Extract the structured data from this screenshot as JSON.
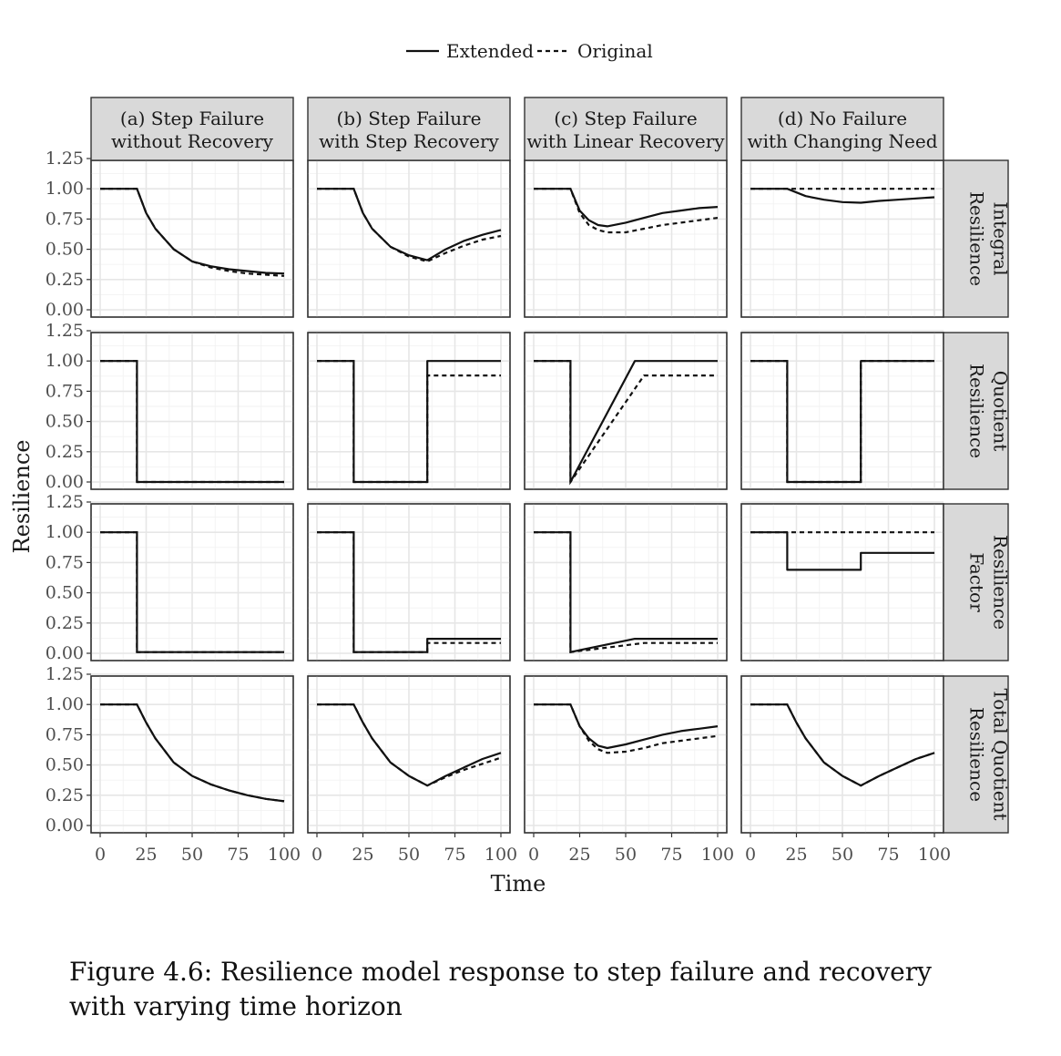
{
  "caption": "Figure 4.6: Resilience model response to step failure and recovery with varying time horizon",
  "chart_data": {
    "type": "line",
    "xlabel": "Time",
    "ylabel": "Resilience",
    "xlim": [
      0,
      100
    ],
    "ylim": [
      0,
      1.25
    ],
    "x_ticks": [
      "0",
      "25",
      "50",
      "75",
      "100"
    ],
    "y_ticks": [
      "0.00",
      "0.25",
      "0.50",
      "0.75",
      "1.00",
      "1.25"
    ],
    "grid": true,
    "legend": {
      "placement": "top",
      "entries": [
        {
          "name": "Extended",
          "style": "solid"
        },
        {
          "name": "Original",
          "style": "dashed"
        }
      ]
    },
    "columns": [
      [
        "(a) Step Failure",
        "without Recovery"
      ],
      [
        "(b) Step Failure",
        "with Step Recovery"
      ],
      [
        "(c) Step Failure",
        "with Linear Recovery"
      ],
      [
        "(d) No Failure",
        "with Changing Need"
      ]
    ],
    "rows": [
      [
        "Integral",
        "Resilience"
      ],
      [
        "Quotient",
        "Resilience"
      ],
      [
        "Resilience",
        "Factor"
      ],
      [
        "Total Quotient",
        "Resilience"
      ]
    ],
    "panels": [
      [
        {
          "Extended": [
            [
              0,
              1
            ],
            [
              20,
              1
            ],
            [
              25,
              0.8
            ],
            [
              30,
              0.67
            ],
            [
              40,
              0.5
            ],
            [
              50,
              0.4
            ],
            [
              60,
              0.36
            ],
            [
              70,
              0.335
            ],
            [
              80,
              0.32
            ],
            [
              90,
              0.305
            ],
            [
              100,
              0.3
            ]
          ],
          "Original": [
            [
              0,
              1
            ],
            [
              20,
              1
            ],
            [
              25,
              0.8
            ],
            [
              30,
              0.67
            ],
            [
              40,
              0.5
            ],
            [
              50,
              0.4
            ],
            [
              60,
              0.35
            ],
            [
              70,
              0.32
            ],
            [
              80,
              0.3
            ],
            [
              90,
              0.29
            ],
            [
              100,
              0.28
            ]
          ]
        },
        {
          "Extended": [
            [
              0,
              1
            ],
            [
              20,
              1
            ],
            [
              25,
              0.8
            ],
            [
              30,
              0.67
            ],
            [
              40,
              0.52
            ],
            [
              50,
              0.45
            ],
            [
              60,
              0.41
            ],
            [
              70,
              0.5
            ],
            [
              80,
              0.57
            ],
            [
              90,
              0.62
            ],
            [
              100,
              0.66
            ]
          ],
          "Original": [
            [
              0,
              1
            ],
            [
              20,
              1
            ],
            [
              25,
              0.8
            ],
            [
              30,
              0.67
            ],
            [
              40,
              0.52
            ],
            [
              50,
              0.44
            ],
            [
              60,
              0.4
            ],
            [
              70,
              0.47
            ],
            [
              80,
              0.53
            ],
            [
              90,
              0.58
            ],
            [
              100,
              0.61
            ]
          ]
        },
        {
          "Extended": [
            [
              0,
              1
            ],
            [
              20,
              1
            ],
            [
              25,
              0.82
            ],
            [
              30,
              0.74
            ],
            [
              35,
              0.7
            ],
            [
              40,
              0.69
            ],
            [
              50,
              0.72
            ],
            [
              60,
              0.76
            ],
            [
              70,
              0.8
            ],
            [
              80,
              0.82
            ],
            [
              90,
              0.84
            ],
            [
              100,
              0.85
            ]
          ],
          "Original": [
            [
              0,
              1
            ],
            [
              20,
              1
            ],
            [
              25,
              0.8
            ],
            [
              30,
              0.7
            ],
            [
              35,
              0.66
            ],
            [
              40,
              0.64
            ],
            [
              50,
              0.64
            ],
            [
              60,
              0.67
            ],
            [
              70,
              0.7
            ],
            [
              80,
              0.72
            ],
            [
              90,
              0.74
            ],
            [
              100,
              0.76
            ]
          ]
        },
        {
          "Extended": [
            [
              0,
              1
            ],
            [
              20,
              1
            ],
            [
              30,
              0.94
            ],
            [
              40,
              0.91
            ],
            [
              50,
              0.89
            ],
            [
              60,
              0.885
            ],
            [
              70,
              0.9
            ],
            [
              80,
              0.91
            ],
            [
              90,
              0.92
            ],
            [
              100,
              0.93
            ]
          ],
          "Original": [
            [
              0,
              1
            ],
            [
              100,
              1
            ]
          ]
        }
      ],
      [
        {
          "Extended": [
            [
              0,
              1
            ],
            [
              20,
              1
            ],
            [
              20,
              0
            ],
            [
              100,
              0
            ]
          ],
          "Original": [
            [
              0,
              1
            ],
            [
              20,
              1
            ],
            [
              20,
              0
            ],
            [
              100,
              0
            ]
          ]
        },
        {
          "Extended": [
            [
              0,
              1
            ],
            [
              20,
              1
            ],
            [
              20,
              0
            ],
            [
              60,
              0
            ],
            [
              60,
              1
            ],
            [
              100,
              1
            ]
          ],
          "Original": [
            [
              0,
              1
            ],
            [
              20,
              1
            ],
            [
              20,
              0
            ],
            [
              60,
              0
            ],
            [
              60,
              0.88
            ],
            [
              100,
              0.88
            ]
          ]
        },
        {
          "Extended": [
            [
              0,
              1
            ],
            [
              20,
              1
            ],
            [
              20,
              0
            ],
            [
              55,
              1
            ],
            [
              100,
              1
            ]
          ],
          "Original": [
            [
              0,
              1
            ],
            [
              20,
              1
            ],
            [
              20,
              0
            ],
            [
              60,
              0.88
            ],
            [
              100,
              0.88
            ]
          ]
        },
        {
          "Extended": [
            [
              0,
              1
            ],
            [
              20,
              1
            ],
            [
              20,
              0
            ],
            [
              60,
              0
            ],
            [
              60,
              1
            ],
            [
              100,
              1
            ]
          ],
          "Original": [
            [
              0,
              1
            ],
            [
              20,
              1
            ],
            [
              20,
              0
            ],
            [
              60,
              0
            ],
            [
              60,
              1
            ],
            [
              100,
              1
            ]
          ]
        }
      ],
      [
        {
          "Extended": [
            [
              0,
              1
            ],
            [
              20,
              1
            ],
            [
              20,
              0.01
            ],
            [
              100,
              0.01
            ]
          ],
          "Original": [
            [
              0,
              1
            ],
            [
              20,
              1
            ],
            [
              20,
              0.01
            ],
            [
              100,
              0.01
            ]
          ]
        },
        {
          "Extended": [
            [
              0,
              1
            ],
            [
              20,
              1
            ],
            [
              20,
              0.01
            ],
            [
              60,
              0.01
            ],
            [
              60,
              0.12
            ],
            [
              100,
              0.12
            ]
          ],
          "Original": [
            [
              0,
              1
            ],
            [
              20,
              1
            ],
            [
              20,
              0.01
            ],
            [
              60,
              0.01
            ],
            [
              60,
              0.085
            ],
            [
              100,
              0.085
            ]
          ]
        },
        {
          "Extended": [
            [
              0,
              1
            ],
            [
              20,
              1
            ],
            [
              20,
              0.01
            ],
            [
              55,
              0.12
            ],
            [
              100,
              0.12
            ]
          ],
          "Original": [
            [
              0,
              1
            ],
            [
              20,
              1
            ],
            [
              20,
              0.01
            ],
            [
              60,
              0.085
            ],
            [
              100,
              0.085
            ]
          ]
        },
        {
          "Extended": [
            [
              0,
              1
            ],
            [
              20,
              1
            ],
            [
              20,
              0.69
            ],
            [
              60,
              0.69
            ],
            [
              60,
              0.83
            ],
            [
              100,
              0.83
            ]
          ],
          "Original": [
            [
              0,
              1
            ],
            [
              100,
              1
            ]
          ]
        }
      ],
      [
        {
          "Extended": [
            [
              0,
              1
            ],
            [
              20,
              1
            ],
            [
              25,
              0.85
            ],
            [
              30,
              0.72
            ],
            [
              40,
              0.52
            ],
            [
              50,
              0.41
            ],
            [
              60,
              0.34
            ],
            [
              70,
              0.29
            ],
            [
              80,
              0.25
            ],
            [
              90,
              0.22
            ],
            [
              100,
              0.2
            ]
          ],
          "Original": [
            [
              0,
              1
            ],
            [
              20,
              1
            ],
            [
              25,
              0.85
            ],
            [
              30,
              0.72
            ],
            [
              40,
              0.52
            ],
            [
              50,
              0.41
            ],
            [
              60,
              0.34
            ],
            [
              70,
              0.29
            ],
            [
              80,
              0.25
            ],
            [
              90,
              0.22
            ],
            [
              100,
              0.2
            ]
          ]
        },
        {
          "Extended": [
            [
              0,
              1
            ],
            [
              20,
              1
            ],
            [
              25,
              0.85
            ],
            [
              30,
              0.72
            ],
            [
              40,
              0.52
            ],
            [
              50,
              0.41
            ],
            [
              60,
              0.33
            ],
            [
              70,
              0.41
            ],
            [
              80,
              0.48
            ],
            [
              90,
              0.55
            ],
            [
              100,
              0.6
            ]
          ],
          "Original": [
            [
              0,
              1
            ],
            [
              20,
              1
            ],
            [
              25,
              0.85
            ],
            [
              30,
              0.72
            ],
            [
              40,
              0.52
            ],
            [
              50,
              0.41
            ],
            [
              60,
              0.33
            ],
            [
              70,
              0.4
            ],
            [
              80,
              0.46
            ],
            [
              90,
              0.51
            ],
            [
              100,
              0.56
            ]
          ]
        },
        {
          "Extended": [
            [
              0,
              1
            ],
            [
              20,
              1
            ],
            [
              25,
              0.82
            ],
            [
              30,
              0.72
            ],
            [
              35,
              0.66
            ],
            [
              40,
              0.64
            ],
            [
              50,
              0.67
            ],
            [
              60,
              0.71
            ],
            [
              70,
              0.75
            ],
            [
              80,
              0.78
            ],
            [
              90,
              0.8
            ],
            [
              100,
              0.82
            ]
          ],
          "Original": [
            [
              0,
              1
            ],
            [
              20,
              1
            ],
            [
              25,
              0.82
            ],
            [
              30,
              0.7
            ],
            [
              35,
              0.63
            ],
            [
              40,
              0.6
            ],
            [
              50,
              0.61
            ],
            [
              60,
              0.64
            ],
            [
              70,
              0.68
            ],
            [
              80,
              0.7
            ],
            [
              90,
              0.72
            ],
            [
              100,
              0.74
            ]
          ]
        },
        {
          "Extended": [
            [
              0,
              1
            ],
            [
              20,
              1
            ],
            [
              25,
              0.85
            ],
            [
              30,
              0.72
            ],
            [
              40,
              0.52
            ],
            [
              50,
              0.41
            ],
            [
              60,
              0.33
            ],
            [
              70,
              0.41
            ],
            [
              80,
              0.48
            ],
            [
              90,
              0.55
            ],
            [
              100,
              0.6
            ]
          ],
          "Original": [
            [
              0,
              1
            ],
            [
              20,
              1
            ],
            [
              25,
              0.85
            ],
            [
              30,
              0.72
            ],
            [
              40,
              0.52
            ],
            [
              50,
              0.41
            ],
            [
              60,
              0.33
            ],
            [
              70,
              0.41
            ],
            [
              80,
              0.48
            ],
            [
              90,
              0.55
            ],
            [
              100,
              0.6
            ]
          ]
        }
      ]
    ]
  }
}
